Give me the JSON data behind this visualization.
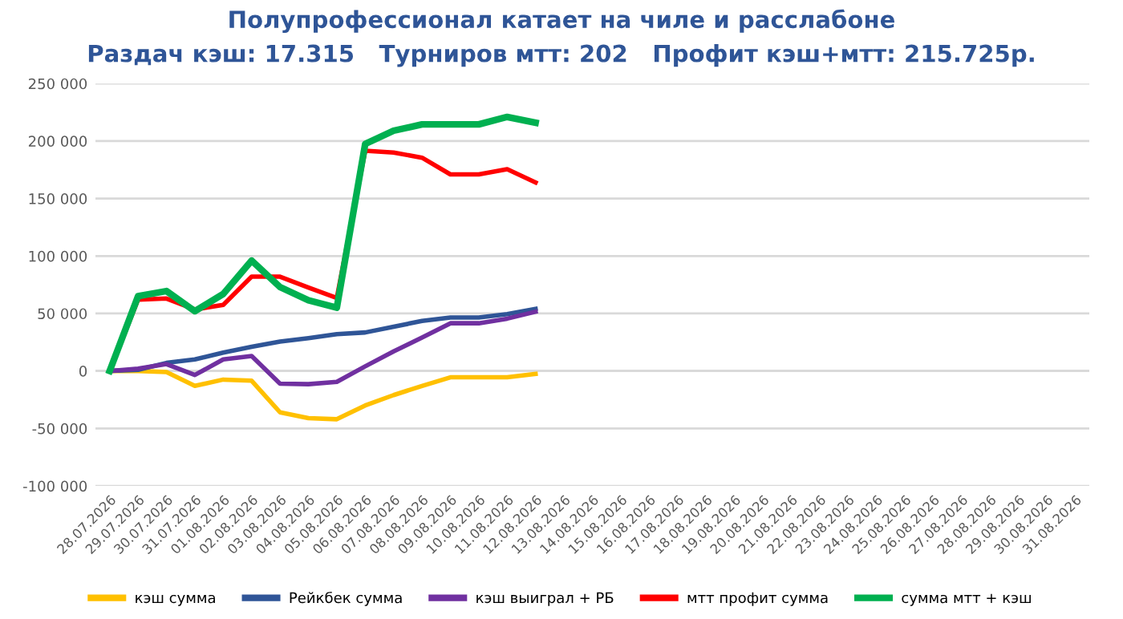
{
  "chart_data": {
    "type": "line",
    "title": "Полупрофессионал катает на чиле и расслабоне",
    "subtitle": "Раздач кэш: 17.315   Турниров мтт: 202   Профит кэш+мтт: 215.725р.",
    "categories": [
      "28.07.2026",
      "29.07.2026",
      "30.07.2026",
      "31.07.2026",
      "01.08.2026",
      "02.08.2026",
      "03.08.2026",
      "04.08.2026",
      "05.08.2026",
      "06.08.2026",
      "07.08.2026",
      "08.08.2026",
      "09.08.2026",
      "10.08.2026",
      "11.08.2026",
      "12.08.2026",
      "13.08.2026",
      "14.08.2026",
      "15.08.2026",
      "16.08.2026",
      "17.08.2026",
      "18.08.2026",
      "19.08.2026",
      "20.08.2026",
      "21.08.2026",
      "22.08.2026",
      "23.08.2026",
      "24.08.2026",
      "25.08.2026",
      "26.08.2026",
      "27.08.2026",
      "28.08.2026",
      "29.08.2026",
      "30.08.2026",
      "31.08.2026"
    ],
    "series": [
      {
        "name": "кэш сумма",
        "color": "#ffc000",
        "values": [
          0,
          0,
          -1000,
          -13000,
          -7500,
          -8500,
          -36000,
          -41000,
          -42000,
          -30000,
          -21000,
          -13000,
          -5500,
          -5500,
          -5500,
          -2500,
          null,
          null,
          null,
          null,
          null,
          null,
          null,
          null,
          null,
          null,
          null,
          null,
          null,
          null,
          null,
          null,
          null,
          null,
          null
        ]
      },
      {
        "name": "Рейкбек сумма",
        "color": "#2f5597",
        "values": [
          0,
          1000,
          7000,
          10000,
          16000,
          21000,
          25500,
          28500,
          32000,
          33500,
          38500,
          43500,
          46500,
          46500,
          49500,
          54000,
          null,
          null,
          null,
          null,
          null,
          null,
          null,
          null,
          null,
          null,
          null,
          null,
          null,
          null,
          null,
          null,
          null,
          null,
          null
        ]
      },
      {
        "name": "кэш выиграл + РБ",
        "color": "#7030a0",
        "values": [
          0,
          2000,
          6000,
          -3500,
          10000,
          13000,
          -11000,
          -11500,
          -9500,
          4000,
          17000,
          29000,
          41500,
          41500,
          45500,
          51500,
          null,
          null,
          null,
          null,
          null,
          null,
          null,
          null,
          null,
          null,
          null,
          null,
          null,
          null,
          null,
          null,
          null,
          null,
          null
        ]
      },
      {
        "name": "мтт профит сумма",
        "color": "#ff0000",
        "values": [
          0,
          62000,
          63000,
          53500,
          57500,
          82000,
          82000,
          72500,
          63500,
          191500,
          190000,
          185500,
          171000,
          171000,
          175500,
          164000,
          null,
          null,
          null,
          null,
          null,
          null,
          null,
          null,
          null,
          null,
          null,
          null,
          null,
          null,
          null,
          null,
          null,
          null,
          null
        ]
      },
      {
        "name": "сумма мтт + кэш",
        "color": "#00b050",
        "values": [
          0,
          65000,
          69500,
          52000,
          67000,
          96000,
          73000,
          61500,
          55000,
          197500,
          209000,
          214500,
          214500,
          214500,
          221000,
          216000,
          null,
          null,
          null,
          null,
          null,
          null,
          null,
          null,
          null,
          null,
          null,
          null,
          null,
          null,
          null,
          null,
          null,
          null,
          null
        ]
      }
    ],
    "ylim": [
      -100000,
      250000
    ],
    "yticks": [
      {
        "value": -100000,
        "label": "-100 000"
      },
      {
        "value": -50000,
        "label": "-50 000"
      },
      {
        "value": 0,
        "label": "0"
      },
      {
        "value": 50000,
        "label": "50 000"
      },
      {
        "value": 100000,
        "label": "100 000"
      },
      {
        "value": 150000,
        "label": "150 000"
      },
      {
        "value": 200000,
        "label": "200 000"
      },
      {
        "value": 250000,
        "label": "250 000"
      }
    ],
    "grid": "y",
    "legend": "bottom",
    "marker": "none",
    "line_style": "solid"
  }
}
